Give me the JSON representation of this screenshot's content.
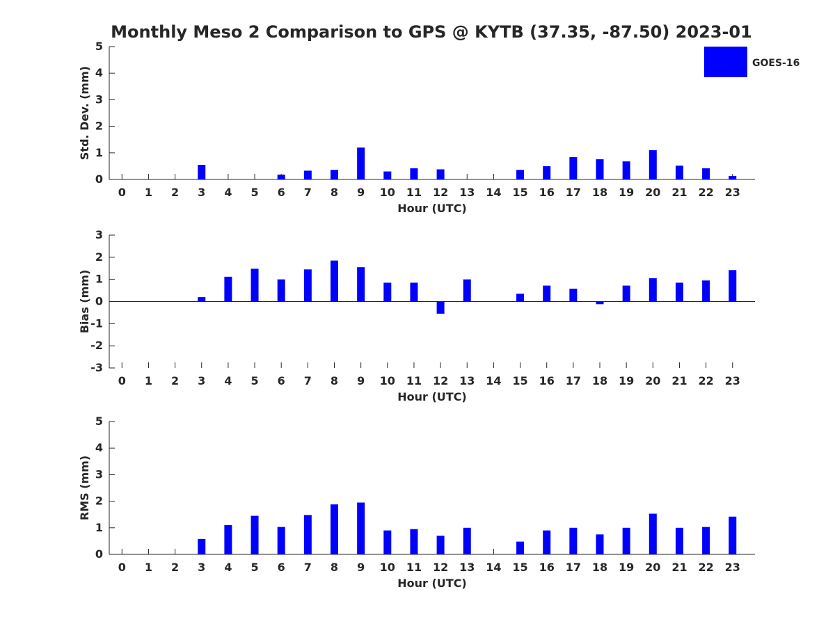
{
  "figure": {
    "title": "Monthly Meso 2 Comparison to GPS @ KYTB (37.35, -87.50) 2023-01",
    "legend": {
      "label": "GOES-16",
      "color": "#0000ff",
      "placement": "top-right"
    }
  },
  "chart_data": [
    {
      "type": "bar",
      "xlabel": "Hour (UTC)",
      "ylabel": "Std. Dev. (mm)",
      "ylim": [
        0,
        5
      ],
      "yticks": [
        0,
        1,
        2,
        3,
        4,
        5
      ],
      "categories": [
        "0",
        "1",
        "2",
        "3",
        "4",
        "5",
        "6",
        "7",
        "8",
        "9",
        "10",
        "11",
        "12",
        "13",
        "14",
        "15",
        "16",
        "17",
        "18",
        "19",
        "20",
        "21",
        "22",
        "23"
      ],
      "series": [
        {
          "name": "GOES-16",
          "color": "#0000ff",
          "values": [
            null,
            null,
            null,
            0.55,
            null,
            null,
            0.18,
            0.33,
            0.36,
            1.2,
            0.3,
            0.42,
            0.38,
            null,
            null,
            0.36,
            0.5,
            0.84,
            0.76,
            0.68,
            1.1,
            0.52,
            0.42,
            0.13
          ]
        }
      ]
    },
    {
      "type": "bar",
      "xlabel": "Hour (UTC)",
      "ylabel": "Bias (mm)",
      "ylim": [
        -3,
        3
      ],
      "yticks": [
        -3,
        -2,
        -1,
        0,
        1,
        2,
        3
      ],
      "categories": [
        "0",
        "1",
        "2",
        "3",
        "4",
        "5",
        "6",
        "7",
        "8",
        "9",
        "10",
        "11",
        "12",
        "13",
        "14",
        "15",
        "16",
        "17",
        "18",
        "19",
        "20",
        "21",
        "22",
        "23"
      ],
      "series": [
        {
          "name": "GOES-16",
          "color": "#0000ff",
          "values": [
            null,
            null,
            null,
            0.2,
            1.12,
            1.48,
            1.0,
            1.45,
            1.85,
            1.55,
            0.85,
            0.85,
            -0.55,
            1.0,
            null,
            0.35,
            0.72,
            0.58,
            -0.12,
            0.72,
            1.05,
            0.85,
            0.95,
            1.42
          ]
        }
      ]
    },
    {
      "type": "bar",
      "xlabel": "Hour (UTC)",
      "ylabel": "RMS (mm)",
      "ylim": [
        0,
        5
      ],
      "yticks": [
        0,
        1,
        2,
        3,
        4,
        5
      ],
      "categories": [
        "0",
        "1",
        "2",
        "3",
        "4",
        "5",
        "6",
        "7",
        "8",
        "9",
        "10",
        "11",
        "12",
        "13",
        "14",
        "15",
        "16",
        "17",
        "18",
        "19",
        "20",
        "21",
        "22",
        "23"
      ],
      "series": [
        {
          "name": "GOES-16",
          "color": "#0000ff",
          "values": [
            null,
            null,
            null,
            0.58,
            1.1,
            1.45,
            1.03,
            1.48,
            1.88,
            1.95,
            0.9,
            0.95,
            0.7,
            1.0,
            null,
            0.48,
            0.9,
            1.0,
            0.75,
            1.0,
            1.53,
            1.0,
            1.03,
            1.42
          ]
        }
      ]
    }
  ]
}
